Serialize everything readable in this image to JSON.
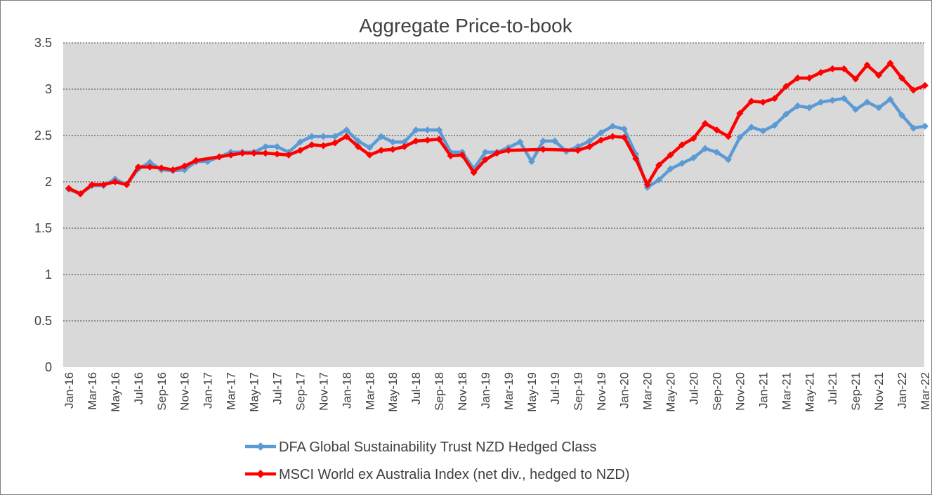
{
  "chart_data": {
    "type": "line",
    "title": "Aggregate Price-to-book",
    "xlabel": "",
    "ylabel": "",
    "ylim": [
      0,
      3.5
    ],
    "yticks": [
      "0",
      "0.5",
      "1",
      "1.5",
      "2",
      "2.5",
      "3",
      "3.5"
    ],
    "grid": true,
    "legend_position": "bottom",
    "plot_background": "#d9d9d9",
    "x": [
      "Jan-16",
      "Feb-16",
      "Mar-16",
      "Apr-16",
      "May-16",
      "Jun-16",
      "Jul-16",
      "Aug-16",
      "Sep-16",
      "Oct-16",
      "Nov-16",
      "Dec-16",
      "Jan-17",
      "Feb-17",
      "Mar-17",
      "Apr-17",
      "May-17",
      "Jun-17",
      "Jul-17",
      "Aug-17",
      "Sep-17",
      "Oct-17",
      "Nov-17",
      "Dec-17",
      "Jan-18",
      "Feb-18",
      "Mar-18",
      "Apr-18",
      "May-18",
      "Jun-18",
      "Jul-18",
      "Aug-18",
      "Sep-18",
      "Oct-18",
      "Nov-18",
      "Dec-18",
      "Jan-19",
      "Feb-19",
      "Mar-19",
      "Apr-19",
      "May-19",
      "Jun-19",
      "Jul-19",
      "Aug-19",
      "Sep-19",
      "Oct-19",
      "Nov-19",
      "Dec-19",
      "Jan-20",
      "Feb-20",
      "Mar-20",
      "Apr-20",
      "May-20",
      "Jun-20",
      "Jul-20",
      "Aug-20",
      "Sep-20",
      "Oct-20",
      "Nov-20",
      "Dec-20",
      "Jan-21",
      "Feb-21",
      "Mar-21",
      "Apr-21",
      "May-21",
      "Jun-21",
      "Jul-21",
      "Aug-21",
      "Sep-21",
      "Oct-21",
      "Nov-21",
      "Dec-21",
      "Jan-22",
      "Feb-22",
      "Mar-22"
    ],
    "xtick_labels": [
      "Jan-16",
      "Mar-16",
      "May-16",
      "Jul-16",
      "Sep-16",
      "Nov-16",
      "Jan-17",
      "Mar-17",
      "May-17",
      "Jul-17",
      "Sep-17",
      "Nov-17",
      "Jan-18",
      "Mar-18",
      "May-18",
      "Jul-18",
      "Sep-18",
      "Nov-18",
      "Jan-19",
      "Mar-19",
      "May-19",
      "Jul-19",
      "Sep-19",
      "Nov-19",
      "Jan-20",
      "Mar-20",
      "May-20",
      "Jul-20",
      "Sep-20",
      "Nov-20",
      "Jan-21",
      "Mar-21",
      "May-21",
      "Jul-21",
      "Sep-21",
      "Nov-21",
      "Jan-22",
      "Mar-22"
    ],
    "series": [
      {
        "name": "DFA Global Sustainability Trust NZD Hedged Class",
        "color": "#5b9bd5",
        "values": [
          1.92,
          1.87,
          1.96,
          1.96,
          2.03,
          1.97,
          2.14,
          2.21,
          2.13,
          2.12,
          2.13,
          2.22,
          2.22,
          2.27,
          2.32,
          2.32,
          2.32,
          2.38,
          2.38,
          2.32,
          2.43,
          2.49,
          2.49,
          2.49,
          2.56,
          2.44,
          2.37,
          2.49,
          2.43,
          2.43,
          2.56,
          2.56,
          2.56,
          2.32,
          2.32,
          2.14,
          2.32,
          2.32,
          2.37,
          2.43,
          2.22,
          2.44,
          2.44,
          2.33,
          2.38,
          2.44,
          2.53,
          2.6,
          2.57,
          2.3,
          1.94,
          2.02,
          2.14,
          2.2,
          2.26,
          2.36,
          2.32,
          2.24,
          2.48,
          2.59,
          2.55,
          2.61,
          2.73,
          2.82,
          2.8,
          2.86,
          2.88,
          2.9,
          2.78,
          2.86,
          2.8,
          2.89,
          2.72,
          2.58,
          2.6
        ]
      },
      {
        "name": "MSCI World ex Australia Index (net div., hedged to NZD)",
        "color": "#ff0000",
        "values": [
          1.93,
          1.87,
          1.97,
          1.97,
          2.0,
          1.97,
          2.16,
          2.16,
          2.15,
          2.13,
          2.17,
          2.23,
          null,
          2.27,
          2.29,
          2.31,
          2.31,
          2.31,
          2.3,
          2.29,
          2.34,
          2.4,
          2.39,
          2.42,
          2.49,
          2.38,
          2.29,
          2.34,
          2.35,
          2.38,
          2.44,
          2.45,
          2.46,
          2.28,
          2.29,
          2.1,
          2.24,
          2.31,
          2.34,
          null,
          null,
          2.35,
          null,
          null,
          2.34,
          2.38,
          2.45,
          2.49,
          2.48,
          2.25,
          1.97,
          2.18,
          2.29,
          2.4,
          2.47,
          2.63,
          2.56,
          2.49,
          2.74,
          2.87,
          2.86,
          2.9,
          3.03,
          3.12,
          3.12,
          3.18,
          3.22,
          3.22,
          3.11,
          3.26,
          3.15,
          3.28,
          3.12,
          2.99,
          3.04
        ]
      }
    ]
  }
}
